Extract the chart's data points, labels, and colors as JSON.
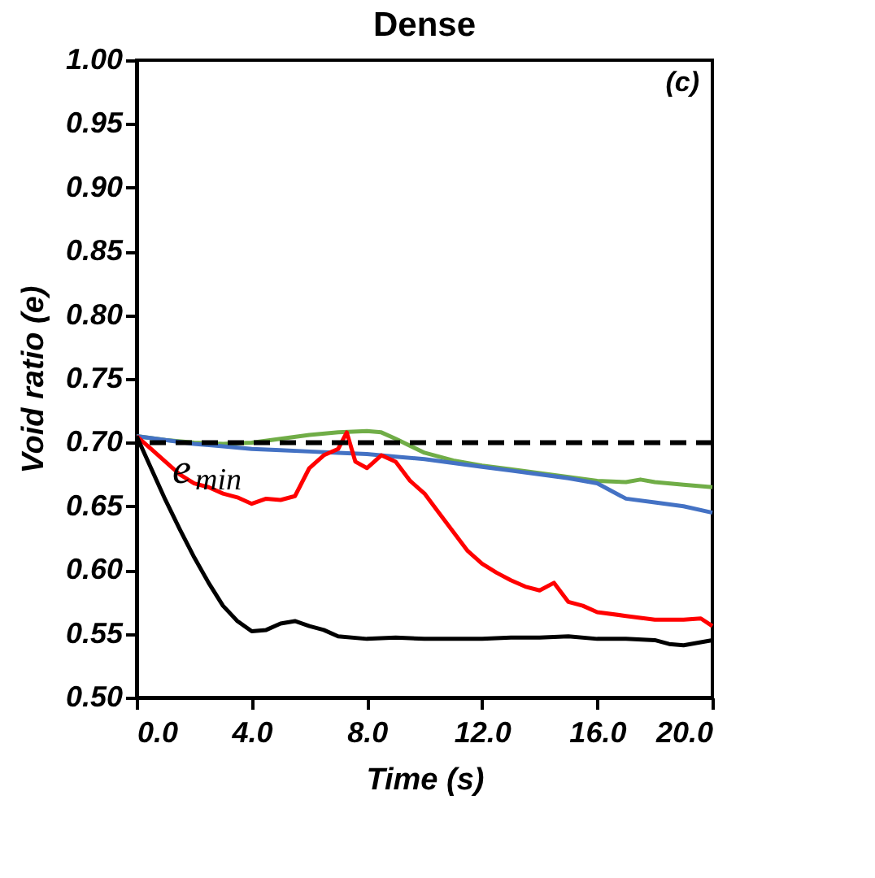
{
  "chart_data": {
    "type": "line",
    "title": "Dense",
    "xlabel": "Time  (s)",
    "ylabel": "Void ratio (e)",
    "annotations": [
      "(c)"
    ],
    "xlim": [
      0,
      20
    ],
    "xticks": [
      {
        "value": 0,
        "label": "0.0"
      },
      {
        "value": 4,
        "label": "4.0"
      },
      {
        "value": 8,
        "label": "8.0"
      },
      {
        "value": 12,
        "label": "12.0"
      },
      {
        "value": 16,
        "label": "16.0"
      },
      {
        "value": 20,
        "label": "20.0"
      }
    ],
    "ylim": [
      0.5,
      1.0
    ],
    "yticks": [
      {
        "value": 0.5,
        "label": "0.50"
      },
      {
        "value": 0.55,
        "label": "0.55"
      },
      {
        "value": 0.6,
        "label": "0.60"
      },
      {
        "value": 0.65,
        "label": "0.65"
      },
      {
        "value": 0.7,
        "label": "0.70"
      },
      {
        "value": 0.75,
        "label": "0.75"
      },
      {
        "value": 0.8,
        "label": "0.80"
      },
      {
        "value": 0.85,
        "label": "0.85"
      },
      {
        "value": 0.9,
        "label": "0.90"
      },
      {
        "value": 0.95,
        "label": "0.95"
      },
      {
        "value": 1.0,
        "label": "1.00"
      }
    ],
    "grid": false,
    "legend": false,
    "line_style": "solid",
    "marker": "none",
    "ref_lines": [
      {
        "axis": "y",
        "value": 0.7,
        "label": "e$_{min}$",
        "color": "#000000",
        "line_style": "dashed"
      }
    ],
    "series": [
      {
        "color": "#70ad47",
        "x": [
          0,
          1,
          2,
          3,
          4,
          5,
          6,
          7,
          8,
          8.5,
          9,
          10,
          11,
          12,
          13,
          14,
          15,
          16,
          17,
          17.5,
          18,
          19,
          20
        ],
        "values": [
          0.705,
          0.702,
          0.7,
          0.699,
          0.7,
          0.703,
          0.706,
          0.708,
          0.709,
          0.708,
          0.703,
          0.692,
          0.686,
          0.682,
          0.679,
          0.676,
          0.673,
          0.67,
          0.669,
          0.671,
          0.669,
          0.667,
          0.665
        ]
      },
      {
        "color": "#4472c4",
        "x": [
          0,
          1,
          2,
          3,
          4,
          5,
          6,
          7,
          8,
          9,
          10,
          11,
          12,
          13,
          14,
          15,
          16,
          16.5,
          17,
          18,
          19,
          20
        ],
        "values": [
          0.705,
          0.702,
          0.699,
          0.697,
          0.695,
          0.694,
          0.693,
          0.692,
          0.691,
          0.689,
          0.687,
          0.684,
          0.681,
          0.678,
          0.675,
          0.672,
          0.668,
          0.662,
          0.656,
          0.653,
          0.65,
          0.645
        ]
      },
      {
        "color": "#ff0000",
        "x": [
          0,
          0.5,
          1,
          1.5,
          2,
          2.5,
          3,
          3.5,
          4,
          4.5,
          5,
          5.5,
          6,
          6.5,
          7,
          7.3,
          7.6,
          8,
          8.5,
          9,
          9.5,
          10,
          10.5,
          11,
          11.5,
          12,
          12.5,
          13,
          13.5,
          14,
          14.5,
          15,
          15.5,
          16,
          17,
          18,
          19,
          19.6,
          20
        ],
        "values": [
          0.705,
          0.695,
          0.685,
          0.675,
          0.668,
          0.665,
          0.66,
          0.657,
          0.652,
          0.656,
          0.655,
          0.658,
          0.68,
          0.69,
          0.695,
          0.708,
          0.685,
          0.68,
          0.69,
          0.685,
          0.67,
          0.66,
          0.645,
          0.63,
          0.615,
          0.605,
          0.598,
          0.592,
          0.587,
          0.584,
          0.59,
          0.575,
          0.572,
          0.567,
          0.564,
          0.561,
          0.561,
          0.562,
          0.556
        ]
      },
      {
        "color": "#000000",
        "x": [
          0,
          0.5,
          1,
          1.5,
          2,
          2.5,
          3,
          3.5,
          4,
          4.5,
          5,
          5.5,
          6,
          6.5,
          7,
          8,
          9,
          10,
          11,
          12,
          13,
          14,
          15,
          16,
          17,
          18,
          18.5,
          19,
          20
        ],
        "values": [
          0.705,
          0.68,
          0.655,
          0.632,
          0.61,
          0.59,
          0.572,
          0.56,
          0.552,
          0.553,
          0.558,
          0.56,
          0.556,
          0.553,
          0.548,
          0.546,
          0.547,
          0.546,
          0.546,
          0.546,
          0.547,
          0.547,
          0.548,
          0.546,
          0.546,
          0.545,
          0.542,
          0.541,
          0.545
        ]
      }
    ]
  }
}
